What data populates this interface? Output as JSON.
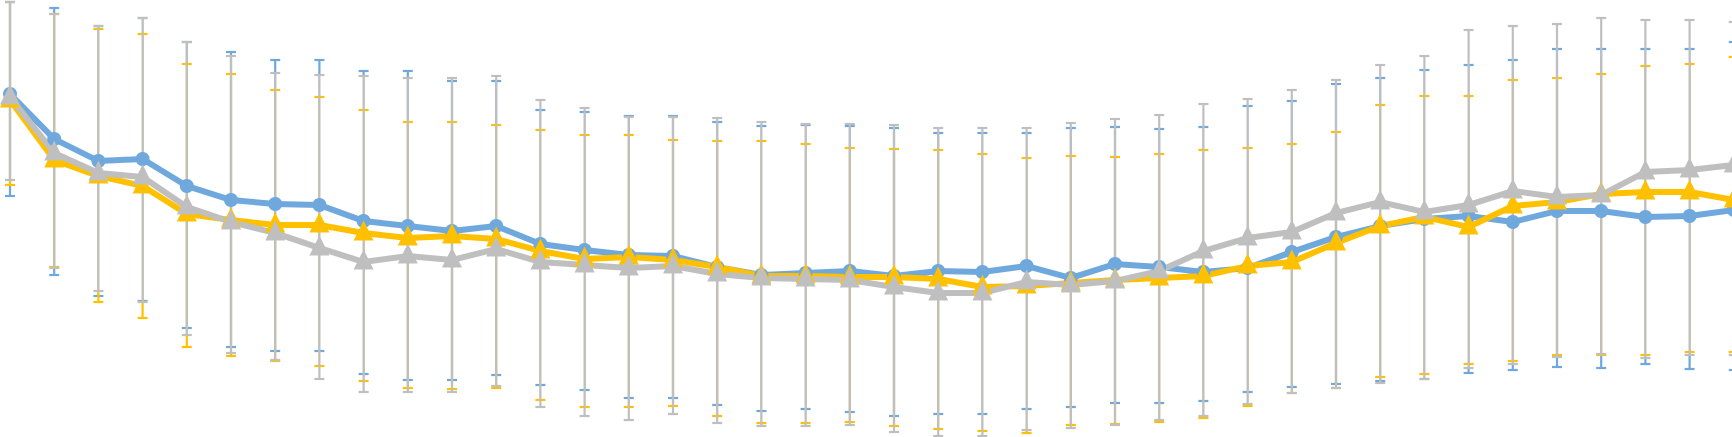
{
  "chart_data": {
    "type": "line",
    "x": [
      1,
      2,
      3,
      4,
      5,
      6,
      7,
      8,
      9,
      10,
      11,
      12,
      13,
      14,
      15,
      16,
      17,
      18,
      19,
      20,
      21,
      22,
      23,
      24,
      25,
      26,
      27,
      28,
      29,
      30,
      31,
      32,
      33,
      34,
      35,
      36,
      37,
      38,
      39,
      40
    ],
    "ylim": [
      0,
      437
    ],
    "grid": false,
    "series": [
      {
        "color": "#6fa8dc",
        "marker": "circle",
        "values": [
          94,
          139,
          161,
          159,
          186,
          200,
          204,
          205,
          221,
          226,
          231,
          226,
          244,
          250,
          255,
          256,
          267,
          275,
          273,
          271,
          276,
          271,
          272,
          266,
          278,
          264,
          267,
          272,
          268,
          252,
          237,
          226,
          219,
          216,
          222,
          211,
          211,
          217,
          216,
          210
        ],
        "err_low": [
          196,
          275,
          296,
          301,
          328,
          347,
          351,
          351,
          374,
          380,
          380,
          375,
          385,
          390,
          398,
          398,
          405,
          411,
          409,
          412,
          416,
          414,
          414,
          409,
          407,
          403,
          403,
          401,
          392,
          387,
          384,
          381,
          379,
          373,
          370,
          367,
          368,
          364,
          369,
          370
        ],
        "err_high": [
          2,
          8,
          26,
          18,
          42,
          52,
          60,
          60,
          71,
          71,
          81,
          81,
          110,
          112,
          116,
          116,
          122,
          126,
          125,
          126,
          128,
          133,
          133,
          133,
          128,
          127,
          129,
          127,
          106,
          101,
          84,
          78,
          70,
          65,
          60,
          49,
          49,
          49,
          49,
          42
        ]
      },
      {
        "color": "#ffc000",
        "marker": "triangle",
        "values": [
          100,
          160,
          176,
          186,
          214,
          220,
          225,
          225,
          233,
          238,
          236,
          239,
          251,
          259,
          257,
          260,
          267,
          276,
          276,
          277,
          277,
          279,
          287,
          286,
          283,
          280,
          278,
          276,
          266,
          262,
          243,
          226,
          217,
          227,
          206,
          202,
          194,
          192,
          192,
          200
        ],
        "err_low": [
          185,
          267,
          302,
          318,
          347,
          356,
          361,
          366,
          381,
          388,
          389,
          388,
          400,
          407,
          407,
          406,
          416,
          423,
          423,
          422,
          426,
          429,
          431,
          433,
          425,
          424,
          422,
          418,
          406,
          393,
          388,
          377,
          374,
          364,
          361,
          355,
          355,
          355,
          352,
          352
        ],
        "err_high": [
          2,
          14,
          29,
          34,
          64,
          74,
          90,
          97,
          110,
          122,
          122,
          125,
          130,
          135,
          135,
          140,
          141,
          141,
          144,
          148,
          149,
          150,
          154,
          158,
          156,
          157,
          154,
          150,
          148,
          144,
          132,
          105,
          96,
          96,
          80,
          78,
          74,
          66,
          64,
          57
        ]
      },
      {
        "color": "#bfbfbf",
        "marker": "triangle",
        "values": [
          97,
          153,
          173,
          177,
          207,
          222,
          233,
          248,
          262,
          256,
          260,
          249,
          262,
          265,
          268,
          266,
          274,
          278,
          279,
          280,
          287,
          293,
          293,
          282,
          285,
          281,
          271,
          251,
          238,
          232,
          213,
          202,
          212,
          205,
          191,
          197,
          195,
          172,
          170,
          165
        ],
        "err_low": [
          180,
          268,
          291,
          302,
          335,
          353,
          360,
          379,
          392,
          392,
          392,
          386,
          407,
          416,
          420,
          414,
          423,
          426,
          426,
          425,
          432,
          436,
          436,
          430,
          428,
          425,
          420,
          416,
          404,
          393,
          388,
          383,
          379,
          368,
          364,
          357,
          354,
          358,
          355,
          355
        ],
        "err_high": [
          2,
          14,
          26,
          18,
          42,
          56,
          73,
          75,
          76,
          78,
          78,
          76,
          100,
          108,
          117,
          117,
          118,
          122,
          124,
          124,
          125,
          128,
          128,
          128,
          123,
          119,
          115,
          104,
          99,
          90,
          80,
          65,
          56,
          30,
          26,
          24,
          18,
          20,
          20,
          22
        ]
      }
    ]
  }
}
